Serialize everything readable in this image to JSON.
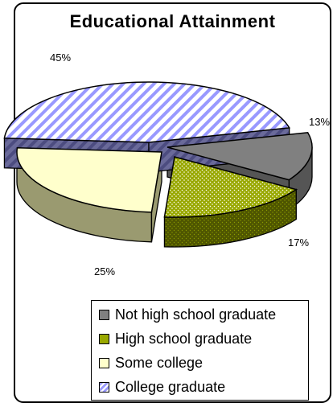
{
  "title": "Educational Attainment",
  "chart_data": {
    "type": "pie",
    "title": "Educational Attainment",
    "categories": [
      "Not high school graduate",
      "High school graduate",
      "Some college",
      "College graduate"
    ],
    "values": [
      13,
      17,
      25,
      45
    ],
    "labels": [
      "13%",
      "17%",
      "25%",
      "45%"
    ],
    "legend": "bottom-right",
    "colors": {
      "Not high school graduate": "#808080",
      "High school graduate": "#99A800",
      "Some college": "#FFFFCC",
      "College graduate": "#9999FF"
    }
  }
}
